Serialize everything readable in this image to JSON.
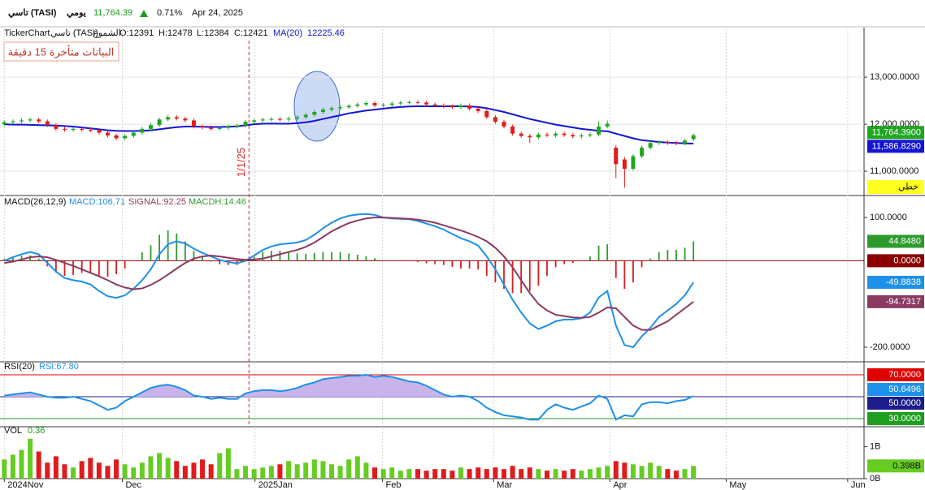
{
  "header": {
    "symbol": "تاسي (TASI)",
    "period": "يومي",
    "price": "11,764.39",
    "change": "0.71%",
    "date": "Apr 24, 2025"
  },
  "chart_data": [
    {
      "type": "candlestick",
      "info": [
        "TickerChart",
        "تاسي (TASI)",
        "الشموع",
        "O:12391",
        "H:12478",
        "L:12384",
        "C:12421"
      ],
      "notice": "البيانات متأخرة 15 دقيقة",
      "style_label": "خطي",
      "x": [
        0,
        1,
        2,
        3,
        4,
        5,
        6,
        7,
        8,
        9,
        10,
        11,
        12,
        13,
        14,
        15,
        16,
        17,
        18,
        19,
        20,
        21,
        22,
        23,
        24,
        25,
        26,
        27,
        28,
        29,
        30,
        31,
        32,
        33,
        34,
        35,
        36,
        37,
        38,
        39,
        40,
        41,
        42,
        43,
        44,
        45,
        46,
        47,
        48,
        49,
        50,
        51,
        52,
        53,
        54,
        55,
        56,
        57,
        58,
        59,
        60,
        61,
        62,
        63,
        64,
        65,
        66,
        67,
        68,
        69,
        70,
        71,
        72,
        73,
        74,
        75,
        76,
        77,
        78,
        79,
        80
      ],
      "open": [
        12000,
        12040,
        12060,
        12080,
        12100,
        12060,
        11980,
        11900,
        11880,
        11900,
        11880,
        11870,
        11820,
        11760,
        11700,
        11750,
        11820,
        11900,
        11980,
        12100,
        12150,
        12120,
        12080,
        11950,
        11930,
        11900,
        11920,
        11950,
        11970,
        12050,
        12080,
        12100,
        12110,
        12100,
        12120,
        12150,
        12200,
        12260,
        12310,
        12340,
        12360,
        12390,
        12420,
        12450,
        12400,
        12410,
        12440,
        12460,
        12470,
        12460,
        12420,
        12400,
        12380,
        12360,
        12400,
        12330,
        12280,
        12150,
        12050,
        11950,
        11800,
        11750,
        11720,
        11780,
        11760,
        11800,
        11770,
        11740,
        11760,
        11780,
        11950,
        11500,
        11250,
        11050,
        11320,
        11500,
        11600,
        11620,
        11600,
        11590,
        11680
      ],
      "high": [
        12080,
        12100,
        12120,
        12140,
        12140,
        12100,
        12020,
        11940,
        11940,
        11940,
        11920,
        11910,
        11860,
        11800,
        11790,
        11860,
        11940,
        12020,
        12140,
        12190,
        12190,
        12160,
        12120,
        11990,
        11970,
        11960,
        11990,
        12010,
        12090,
        12120,
        12140,
        12150,
        12150,
        12160,
        12190,
        12240,
        12300,
        12350,
        12380,
        12400,
        12430,
        12460,
        12490,
        12490,
        12450,
        12480,
        12500,
        12510,
        12510,
        12500,
        12460,
        12440,
        12420,
        12440,
        12440,
        12370,
        12320,
        12190,
        12090,
        11990,
        11840,
        11790,
        11820,
        11820,
        11840,
        11840,
        11810,
        11800,
        11820,
        12060,
        12080,
        11550,
        11300,
        11360,
        11540,
        11640,
        11660,
        11660,
        11640,
        11690,
        11800
      ],
      "low": [
        11960,
        12000,
        12020,
        12040,
        12020,
        11940,
        11860,
        11840,
        11840,
        11840,
        11830,
        11780,
        11720,
        11660,
        11660,
        11710,
        11780,
        11860,
        11940,
        12060,
        12080,
        12040,
        11910,
        11890,
        11860,
        11860,
        11880,
        11910,
        11930,
        12010,
        12040,
        12060,
        12060,
        12060,
        12080,
        12110,
        12160,
        12220,
        12270,
        12300,
        12320,
        12350,
        12380,
        12360,
        12360,
        12370,
        12400,
        12420,
        12420,
        12380,
        12360,
        12340,
        12320,
        12320,
        12290,
        12240,
        12110,
        12010,
        11910,
        11760,
        11710,
        11600,
        11680,
        11720,
        11720,
        11730,
        11700,
        11700,
        11720,
        11740,
        11910,
        10850,
        10650,
        11010,
        11280,
        11460,
        11560,
        11560,
        11550,
        11550,
        11640
      ],
      "close": [
        12040,
        12060,
        12080,
        12100,
        12060,
        11980,
        11900,
        11880,
        11900,
        11880,
        11870,
        11820,
        11760,
        11700,
        11750,
        11820,
        11900,
        11980,
        12100,
        12150,
        12120,
        12080,
        11950,
        11930,
        11900,
        11920,
        11950,
        11970,
        12050,
        12080,
        12100,
        12110,
        12100,
        12120,
        12150,
        12200,
        12260,
        12310,
        12340,
        12360,
        12390,
        12420,
        12450,
        12400,
        12410,
        12440,
        12460,
        12470,
        12460,
        12420,
        12400,
        12380,
        12360,
        12400,
        12330,
        12280,
        12150,
        12050,
        11950,
        11800,
        11750,
        11720,
        11780,
        11760,
        11800,
        11770,
        11740,
        11760,
        11780,
        11950,
        12010,
        11150,
        11050,
        11320,
        11500,
        11600,
        11620,
        11600,
        11590,
        11650,
        11764.39
      ],
      "close_label": "11,764.3900",
      "up_color": "#1fa61f",
      "down_color": "#e31b1b",
      "series": [
        {
          "name": "MA(20)",
          "readout": "12225.46",
          "color": "#1414d2",
          "last_label": "11,586.8290",
          "values": [
            12000,
            11990,
            11990,
            11985,
            11980,
            11975,
            11970,
            11960,
            11950,
            11930,
            11910,
            11890,
            11870,
            11860,
            11855,
            11855,
            11860,
            11870,
            11890,
            11915,
            11935,
            11950,
            11950,
            11945,
            11940,
            11940,
            11945,
            11955,
            11975,
            12000,
            12010,
            12015,
            12010,
            12010,
            12020,
            12040,
            12070,
            12110,
            12150,
            12190,
            12230,
            12260,
            12290,
            12310,
            12330,
            12350,
            12365,
            12375,
            12380,
            12380,
            12380,
            12380,
            12380,
            12380,
            12375,
            12365,
            12340,
            12300,
            12260,
            12210,
            12160,
            12110,
            12070,
            12030,
            11990,
            11960,
            11930,
            11900,
            11880,
            11860,
            11850,
            11800,
            11750,
            11700,
            11660,
            11640,
            11620,
            11610,
            11600,
            11590,
            11586.829
          ]
        }
      ],
      "ylim": [
        10500,
        14020
      ],
      "yticks": [
        {
          "value": 13000,
          "label": "13,000.0000"
        },
        {
          "value": 12000,
          "label": "12,000.0000"
        },
        {
          "value": 11000,
          "label": "11,000.0000"
        }
      ],
      "grid": true,
      "xlim": [
        -0.5,
        99.8
      ],
      "xticks": [
        {
          "value": 0,
          "label": "2024Nov"
        },
        {
          "value": 13.7,
          "label": "Dec"
        },
        {
          "value": 29.1,
          "label": "2025Jan"
        },
        {
          "value": 43.9,
          "label": "Feb"
        },
        {
          "value": 56.8,
          "label": "Mar"
        },
        {
          "value": 70.3,
          "label": "Apr"
        },
        {
          "value": 83.8,
          "label": "May"
        },
        {
          "value": 97.9,
          "label": "Jun"
        }
      ],
      "annotations": [
        {
          "value": 28.4,
          "label": "1/1/25"
        }
      ]
    },
    {
      "type": "macd",
      "title": "MACD(26,12,9)",
      "ylim": [
        -232,
        149
      ],
      "yticks": [
        {
          "value": 100,
          "label": "100.0000"
        },
        {
          "value": -200,
          "label": "-200.0000"
        }
      ],
      "levels": [
        {
          "value": 0,
          "label": "0.0000",
          "color": "#8b0000"
        }
      ],
      "series": [
        {
          "name": "MACD:106.71",
          "color": "#1e90e8",
          "last_label": "-49.8838",
          "values": [
            0,
            8,
            15,
            20,
            15,
            -5,
            -25,
            -40,
            -45,
            -48,
            -55,
            -70,
            -82,
            -86,
            -80,
            -65,
            -45,
            -20,
            15,
            38,
            45,
            40,
            28,
            18,
            10,
            2,
            -3,
            -6,
            0,
            12,
            25,
            33,
            38,
            40,
            42,
            48,
            60,
            75,
            88,
            98,
            104,
            107,
            108,
            106,
            100,
            98,
            97,
            96,
            92,
            86,
            80,
            72,
            62,
            52,
            45,
            35,
            10,
            -20,
            -55,
            -90,
            -120,
            -145,
            -158,
            -150,
            -140,
            -136,
            -136,
            -133,
            -120,
            -85,
            -70,
            -150,
            -195,
            -200,
            -175,
            -155,
            -130,
            -115,
            -100,
            -80,
            -49.8838
          ]
        },
        {
          "name": "SIGNAL:92.25",
          "color": "#8b3a62",
          "last_label": "-94.7317",
          "values": [
            -5,
            -2,
            3,
            8,
            10,
            8,
            2,
            -5,
            -12,
            -20,
            -28,
            -36,
            -45,
            -55,
            -62,
            -66,
            -64,
            -56,
            -45,
            -32,
            -18,
            -5,
            5,
            10,
            12,
            10,
            7,
            4,
            2,
            3,
            5,
            10,
            15,
            20,
            25,
            32,
            42,
            55,
            68,
            78,
            87,
            93,
            98,
            100,
            100,
            99,
            98,
            97,
            95,
            92,
            88,
            82,
            76,
            70,
            63,
            55,
            45,
            30,
            10,
            -15,
            -45,
            -75,
            -100,
            -115,
            -125,
            -128,
            -131,
            -132,
            -130,
            -120,
            -108,
            -110,
            -130,
            -150,
            -160,
            -160,
            -150,
            -140,
            -125,
            -110,
            -94.7317
          ]
        },
        {
          "name": "MACDH:14.46",
          "type": "histogram",
          "colors": [
            "#2e9a2e",
            "#d42020"
          ],
          "last_label": "44.8480",
          "values": [
            5,
            10,
            12,
            12,
            5,
            -13,
            -27,
            -35,
            -33,
            -28,
            -27,
            -34,
            -37,
            -31,
            -18,
            1,
            19,
            36,
            60,
            70,
            63,
            45,
            23,
            8,
            -2,
            -8,
            -10,
            -10,
            -2,
            9,
            20,
            23,
            23,
            20,
            17,
            16,
            18,
            20,
            20,
            20,
            17,
            14,
            10,
            6,
            0,
            -1,
            -1,
            -1,
            -3,
            -6,
            -8,
            -10,
            -14,
            -18,
            -18,
            -20,
            -35,
            -50,
            -65,
            -75,
            -75,
            -70,
            -58,
            -35,
            -15,
            -8,
            -5,
            -1,
            10,
            35,
            38,
            -40,
            -65,
            -50,
            -15,
            5,
            20,
            25,
            25,
            30,
            44.848
          ]
        }
      ]
    },
    {
      "type": "rsi",
      "title": "RSI(20)",
      "ylim": [
        23.3,
        81.1
      ],
      "levels": [
        {
          "value": 70,
          "label": "70.0000",
          "color": "#e00000"
        },
        {
          "value": 50,
          "label": "50.0000",
          "color": "#1c1c8a"
        },
        {
          "value": 30,
          "label": "30.0000",
          "color": "#1e9e1e"
        }
      ],
      "fill_color": "#c8b4ea",
      "series": [
        {
          "name": "RSI:67.80",
          "color": "#1e90e8",
          "last_label": "50.6496",
          "values": [
            51,
            52,
            53,
            54,
            52,
            50,
            49,
            49,
            50,
            48,
            46,
            42,
            38,
            40,
            46,
            50,
            54,
            58,
            60,
            61,
            59,
            56,
            51,
            50,
            48,
            49,
            48,
            48,
            53,
            55,
            56,
            56,
            55,
            56,
            58,
            61,
            63,
            66,
            67,
            68,
            69,
            69,
            70,
            68,
            69,
            68,
            66,
            64,
            63,
            60,
            56,
            52,
            50,
            51,
            50,
            46,
            40,
            36,
            33,
            32,
            31,
            29,
            29,
            38,
            43,
            40,
            38,
            41,
            44,
            51,
            48,
            29,
            33,
            32,
            43,
            45,
            45,
            44,
            46,
            47,
            50.6496
          ]
        }
      ]
    },
    {
      "type": "volume",
      "title": "VOL",
      "readout": "0.36",
      "ylim": [
        0,
        1.6
      ],
      "yticks": [
        {
          "value": 1,
          "label": "1B"
        },
        {
          "value": 0,
          "label": "0B"
        }
      ],
      "colors": [
        "#66cc22",
        "#e01b1b"
      ],
      "last_label": "0.398B",
      "values": [
        0.6,
        0.75,
        0.9,
        1.25,
        0.85,
        0.5,
        0.7,
        0.45,
        0.35,
        0.55,
        0.65,
        0.5,
        0.4,
        0.6,
        0.45,
        0.35,
        0.5,
        0.7,
        0.8,
        0.65,
        0.55,
        0.4,
        0.5,
        0.6,
        0.45,
        0.8,
        0.95,
        0.3,
        0.4,
        0.3,
        0.35,
        0.4,
        0.45,
        0.55,
        0.45,
        0.5,
        0.6,
        0.55,
        0.45,
        0.4,
        0.6,
        0.7,
        0.5,
        0.35,
        0.3,
        0.35,
        0.25,
        0.3,
        0.3,
        0.25,
        0.3,
        0.3,
        0.25,
        0.35,
        0.3,
        0.35,
        0.3,
        0.35,
        0.3,
        0.4,
        0.3,
        0.35,
        0.3,
        0.25,
        0.3,
        0.25,
        0.3,
        0.25,
        0.3,
        0.35,
        0.4,
        0.55,
        0.5,
        0.45,
        0.4,
        0.5,
        0.4,
        0.3,
        0.25,
        0.3,
        0.398
      ]
    }
  ]
}
